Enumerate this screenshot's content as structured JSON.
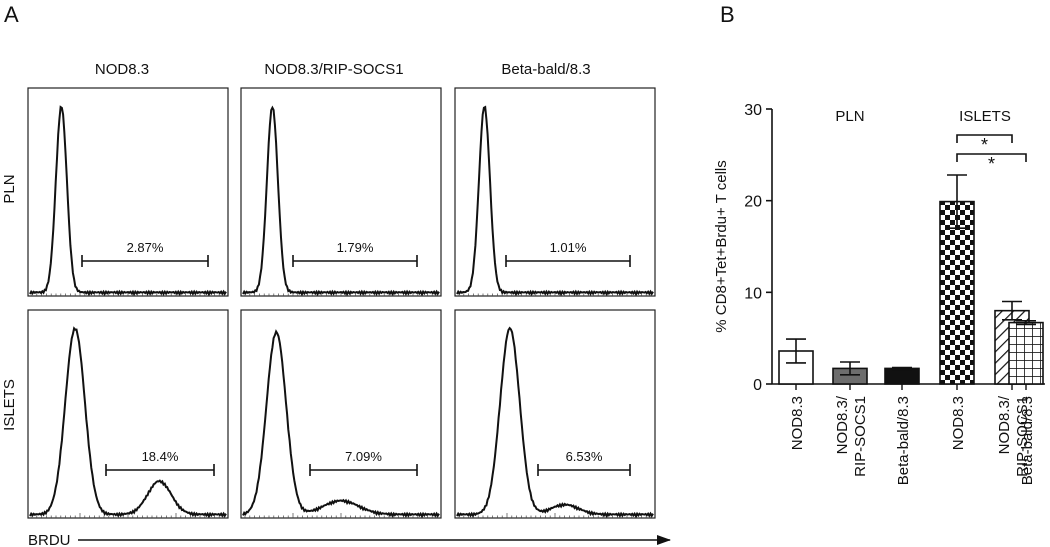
{
  "panel_labels": {
    "a": "A",
    "b": "B"
  },
  "flow": {
    "columns": [
      "NOD8.3",
      "NOD8.3/RIP-SOCS1",
      "Beta-bald/8.3"
    ],
    "rows": [
      "PLN",
      "ISLETS"
    ],
    "x_axis_label": "BRDU",
    "gates": [
      [
        "2.87%",
        "1.79%",
        "1.01%"
      ],
      [
        "18.4%",
        "7.09%",
        "6.53%"
      ]
    ]
  },
  "chart_data": {
    "type": "bar",
    "title": "",
    "ylabel": "% CD8+Tet+Brdu+ T cells",
    "ylim": [
      0,
      30
    ],
    "yticks": [
      0,
      10,
      20,
      30
    ],
    "groups": [
      "PLN",
      "ISLETS"
    ],
    "categories": [
      [
        "NOD8.3"
      ],
      [
        "NOD8.3/",
        "RIP-SOCS1"
      ],
      [
        "Beta-bald/8.3"
      ],
      [
        "NOD8.3"
      ],
      [
        "NOD8.3/",
        "RIP-SOCS1"
      ],
      [
        "Beta-bald/8.3"
      ]
    ],
    "values": [
      3.6,
      1.7,
      1.7,
      19.9,
      8.0,
      6.7
    ],
    "errors": [
      1.3,
      0.7,
      0.1,
      2.9,
      1.0,
      0.2
    ],
    "fills": [
      "white",
      "gray",
      "black",
      "checker",
      "diagonal",
      "grid"
    ],
    "significance": [
      {
        "from": 3,
        "to": 4,
        "label": "*"
      },
      {
        "from": 3,
        "to": 5,
        "label": "*"
      }
    ]
  }
}
